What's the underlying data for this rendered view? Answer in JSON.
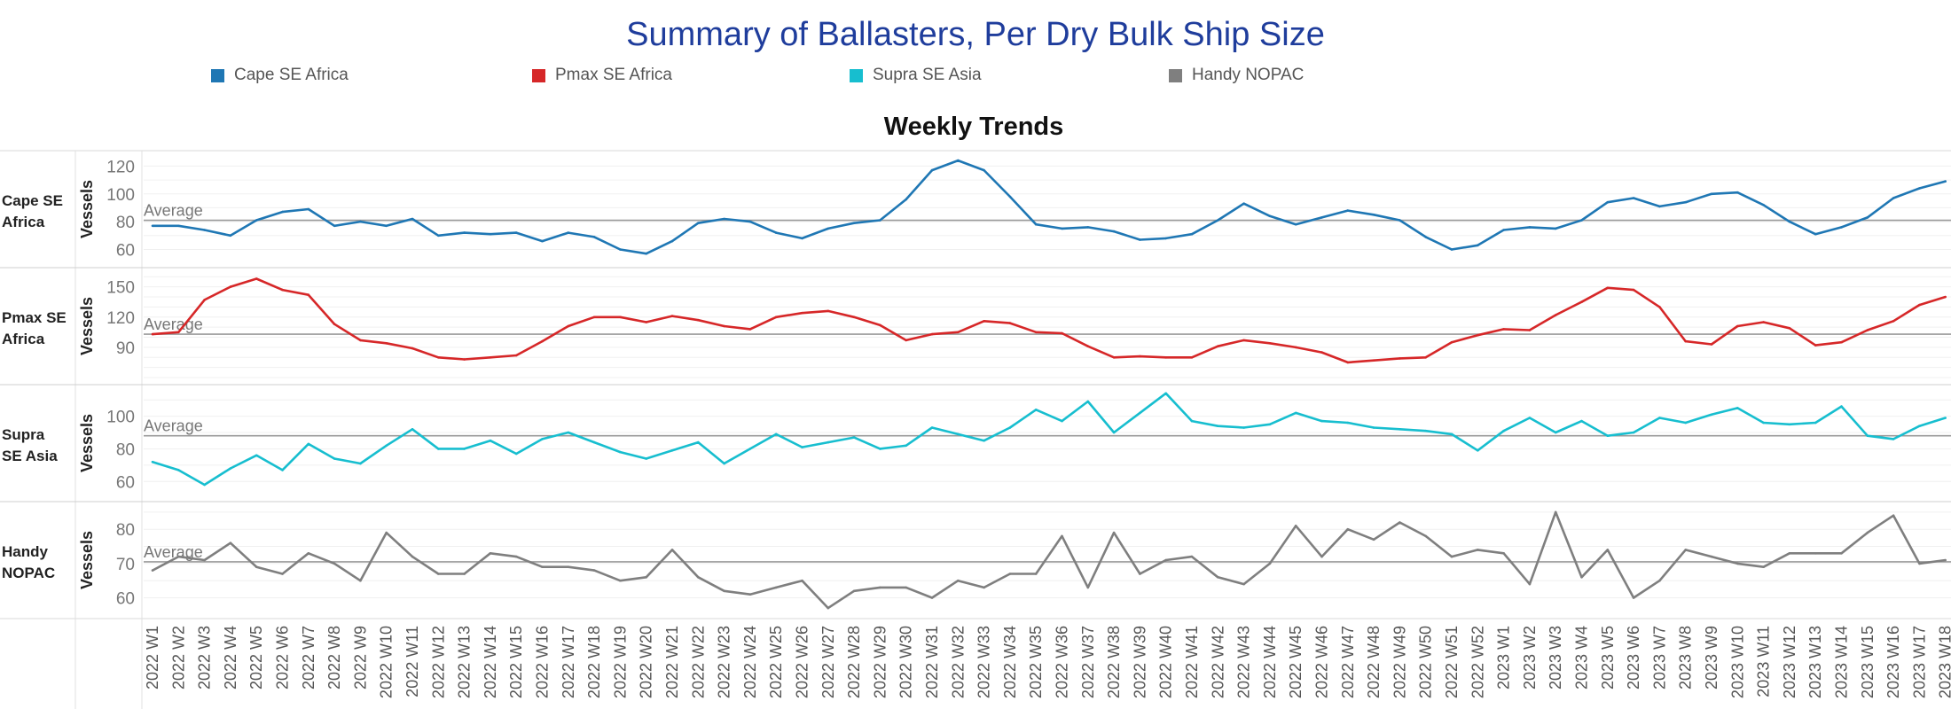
{
  "title": "Summary of Ballasters, Per Dry Bulk Ship Size",
  "legend": [
    {
      "label": "Cape SE Africa",
      "color": "#1f77b4"
    },
    {
      "label": "Pmax SE Africa",
      "color": "#d62728"
    },
    {
      "label": "Supra SE Asia",
      "color": "#17becf"
    },
    {
      "label": "Handy NOPAC",
      "color": "#7f7f7f"
    }
  ],
  "chart_data": {
    "type": "line",
    "subtitle": "Weekly Trends",
    "ylabel": "Vessels",
    "average_label": "Average",
    "grid": true,
    "x": [
      "2022 W1",
      "2022 W2",
      "2022 W3",
      "2022 W4",
      "2022 W5",
      "2022 W6",
      "2022 W7",
      "2022 W8",
      "2022 W9",
      "2022 W10",
      "2022 W11",
      "2022 W12",
      "2022 W13",
      "2022 W14",
      "2022 W15",
      "2022 W16",
      "2022 W17",
      "2022 W18",
      "2022 W19",
      "2022 W20",
      "2022 W21",
      "2022 W22",
      "2022 W23",
      "2022 W24",
      "2022 W25",
      "2022 W26",
      "2022 W27",
      "2022 W28",
      "2022 W29",
      "2022 W30",
      "2022 W31",
      "2022 W32",
      "2022 W33",
      "2022 W34",
      "2022 W35",
      "2022 W36",
      "2022 W37",
      "2022 W38",
      "2022 W39",
      "2022 W40",
      "2022 W41",
      "2022 W42",
      "2022 W43",
      "2022 W44",
      "2022 W45",
      "2022 W46",
      "2022 W47",
      "2022 W48",
      "2022 W49",
      "2022 W50",
      "2022 W51",
      "2022 W52",
      "2023 W1",
      "2023 W2",
      "2023 W3",
      "2023 W4",
      "2023 W5",
      "2023 W6",
      "2023 W7",
      "2023 W8",
      "2023 W9",
      "2023 W10",
      "2023 W11",
      "2023 W12",
      "2023 W13",
      "2023 W14",
      "2023 W15",
      "2023 W16",
      "2023 W17",
      "2023 W18"
    ],
    "panels": [
      {
        "row_label": [
          "Cape SE",
          "Africa"
        ],
        "color": "#1f77b4",
        "ylim": [
          52,
          126
        ],
        "yticks": [
          60,
          80,
          100,
          120
        ],
        "average": 81,
        "values": [
          77,
          77,
          74,
          70,
          81,
          87,
          89,
          77,
          80,
          77,
          82,
          70,
          72,
          71,
          72,
          66,
          72,
          69,
          60,
          57,
          66,
          79,
          82,
          80,
          72,
          68,
          75,
          79,
          81,
          96,
          117,
          124,
          117,
          98,
          78,
          75,
          76,
          73,
          67,
          68,
          71,
          81,
          93,
          84,
          78,
          83,
          88,
          85,
          81,
          69,
          60,
          63,
          74,
          76,
          75,
          81,
          94,
          97,
          91,
          94,
          100,
          101,
          92,
          80,
          71,
          76,
          83,
          97,
          104,
          109
        ]
      },
      {
        "row_label": [
          "Pmax SE",
          "Africa"
        ],
        "color": "#d62728",
        "ylim": [
          60,
          162
        ],
        "yticks": [
          90,
          120,
          150
        ],
        "average": 103,
        "values": [
          103,
          105,
          137,
          150,
          158,
          147,
          142,
          113,
          97,
          94,
          89,
          80,
          78,
          80,
          82,
          96,
          111,
          120,
          120,
          115,
          121,
          117,
          111,
          108,
          120,
          124,
          126,
          120,
          112,
          97,
          103,
          105,
          116,
          114,
          105,
          104,
          91,
          80,
          81,
          80,
          80,
          91,
          97,
          94,
          90,
          85,
          75,
          77,
          79,
          80,
          95,
          102,
          108,
          107,
          122,
          135,
          149,
          147,
          130,
          96,
          93,
          111,
          115,
          109,
          92,
          95,
          107,
          116,
          132,
          140
        ]
      },
      {
        "row_label": [
          "Supra",
          "SE Asia"
        ],
        "color": "#17becf",
        "ylim": [
          52,
          115
        ],
        "yticks": [
          60,
          80,
          100
        ],
        "average": 88,
        "values": [
          72,
          67,
          58,
          68,
          76,
          67,
          83,
          74,
          71,
          82,
          92,
          80,
          80,
          85,
          77,
          86,
          90,
          84,
          78,
          74,
          79,
          84,
          71,
          80,
          89,
          81,
          84,
          87,
          80,
          82,
          93,
          89,
          85,
          93,
          104,
          97,
          109,
          90,
          102,
          114,
          97,
          94,
          93,
          95,
          102,
          97,
          96,
          93,
          92,
          91,
          89,
          79,
          91,
          99,
          90,
          97,
          88,
          90,
          99,
          96,
          101,
          105,
          96,
          95,
          96,
          106,
          88,
          86,
          94,
          99
        ]
      },
      {
        "row_label": [
          "Handy",
          "NOPAC"
        ],
        "color": "#7f7f7f",
        "ylim": [
          56,
          86
        ],
        "yticks": [
          60,
          70,
          80
        ],
        "average": 70.5,
        "values": [
          68,
          72,
          71,
          76,
          69,
          67,
          73,
          70,
          65,
          79,
          72,
          67,
          67,
          73,
          72,
          69,
          69,
          68,
          65,
          66,
          74,
          66,
          62,
          61,
          63,
          65,
          57,
          62,
          63,
          63,
          60,
          65,
          63,
          67,
          67,
          78,
          63,
          79,
          67,
          71,
          72,
          66,
          64,
          70,
          81,
          72,
          80,
          77,
          82,
          78,
          72,
          74,
          73,
          64,
          85,
          66,
          74,
          60,
          65,
          74,
          72,
          70,
          69,
          73,
          73,
          73,
          79,
          84,
          70,
          71
        ]
      }
    ]
  }
}
